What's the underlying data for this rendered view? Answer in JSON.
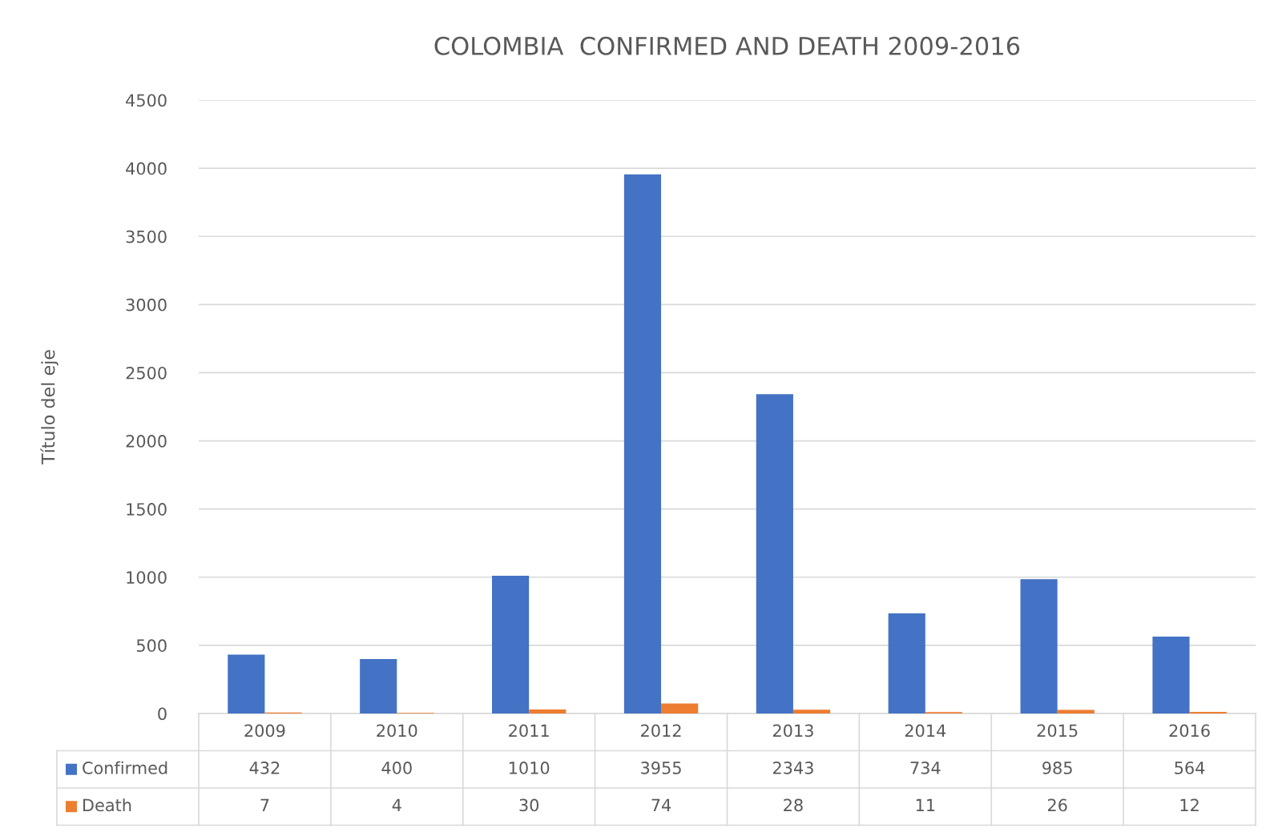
{
  "chart_data": {
    "type": "bar",
    "title": "COLOMBIA  CONFIRMED AND DEATH 2009-2016",
    "ylabel": "Título del eje",
    "categories": [
      "2009",
      "2010",
      "2011",
      "2012",
      "2013",
      "2014",
      "2015",
      "2016"
    ],
    "series": [
      {
        "name": "Confirmed",
        "color": "#4472c4",
        "values": [
          432,
          400,
          1010,
          3955,
          2343,
          734,
          985,
          564
        ]
      },
      {
        "name": "Death",
        "color": "#ed7d31",
        "values": [
          7,
          4,
          30,
          74,
          28,
          11,
          26,
          12
        ]
      }
    ],
    "ylim": [
      0,
      4500
    ],
    "yticks": [
      0,
      500,
      1000,
      1500,
      2000,
      2500,
      3000,
      3500,
      4000,
      4500
    ],
    "grid": "y",
    "data_labels": true,
    "legend": "bottom left"
  }
}
